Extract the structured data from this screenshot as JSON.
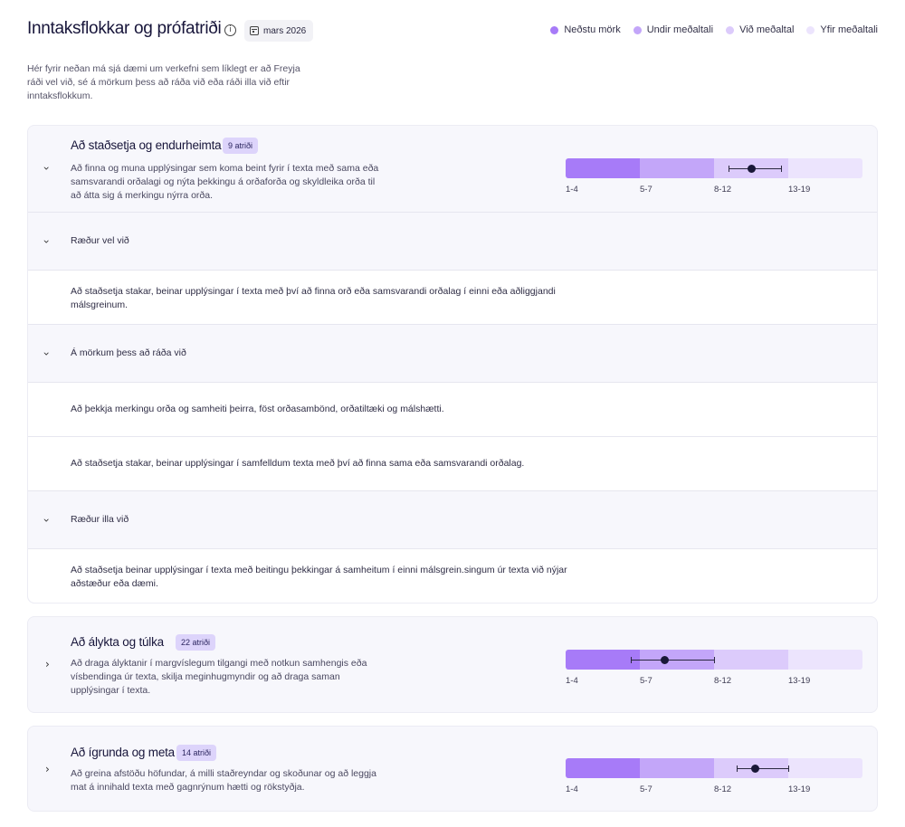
{
  "header": {
    "title": "Inntaksflokkar og prófatriði",
    "date": "mars 2026"
  },
  "legend": [
    {
      "label": "Neðstu mörk",
      "color": "#a77bf8"
    },
    {
      "label": "Undir meðaltali",
      "color": "#c3a6f9"
    },
    {
      "label": "Við meðaltal",
      "color": "#dccbfb"
    },
    {
      "label": "Yfir meðaltali",
      "color": "#ece4fd"
    }
  ],
  "intro": "Hér fyrir neðan má sjá dæmi um verkefni sem líklegt er að Freyja ráði vel við, sé á mörkum þess að ráða við eða ráði illa við eftir inntaksflokkum.",
  "range_colors": [
    "#a77bf8",
    "#c3a6f9",
    "#dccbfb",
    "#ece4fd"
  ],
  "categories": [
    {
      "title": "Að staðsetja og endurheimta",
      "badge": "9 atriði",
      "description": "Að finna og muna upplýsingar sem koma beint fyrir í texta með sama eða samsvarandi orðalagi og nýta þekkingu á orðaforða og skyldleika orða til að átta sig á merkingu nýrra orða.",
      "expanded": true,
      "ticks": [
        "1-4",
        "5-7",
        "8-12",
        "13-19"
      ],
      "score": 10.5,
      "score_range": [
        9,
        12.5
      ],
      "groups": [
        {
          "label": "Ræður vel við",
          "items": [
            "Að staðsetja stakar, beinar upplýsingar í texta með því að finna orð eða samsvarandi orðalag  í einni eða aðliggjandi málsgreinum."
          ]
        },
        {
          "label": "Á mörkum þess að ráða við",
          "items": [
            "Að þekkja merkingu orða og samheiti þeirra, föst orðasambönd, orðatiltæki og málshætti.",
            "Að staðsetja stakar, beinar upplýsingar í samfelldum texta með því að finna sama eða samsvarandi orðalag."
          ]
        },
        {
          "label": "Ræður illa við",
          "items": [
            "Að staðsetja beinar upplýsingar í texta með beitingu þekkingar á samheitum í einni málsgrein.singum úr texta við nýjar aðstæður eða dæmi."
          ]
        }
      ]
    },
    {
      "title": "Að álykta og túlka",
      "badge": "22 atriði",
      "description": "Að draga ályktanir í margvíslegum tilgangi með notkun samhengis eða vísbendinga úr texta, skilja meginhugmyndir og að draga saman upplýsingar í texta.",
      "expanded": false,
      "ticks": [
        "1-4",
        "5-7",
        "8-12",
        "13-19"
      ],
      "score": 6,
      "score_range": [
        4.5,
        8
      ]
    },
    {
      "title": "Að ígrunda og meta",
      "badge": "14 atriði",
      "description": "Að greina afstöðu höfundar, á milli staðreyndar og skoðunar og að leggja mat á innihald texta með gagnrýnum hætti og rökstyðja.",
      "expanded": false,
      "ticks": [
        "1-4",
        "5-7",
        "8-12",
        "13-19"
      ],
      "score": 10.8,
      "score_range": [
        9.5,
        13
      ]
    }
  ]
}
